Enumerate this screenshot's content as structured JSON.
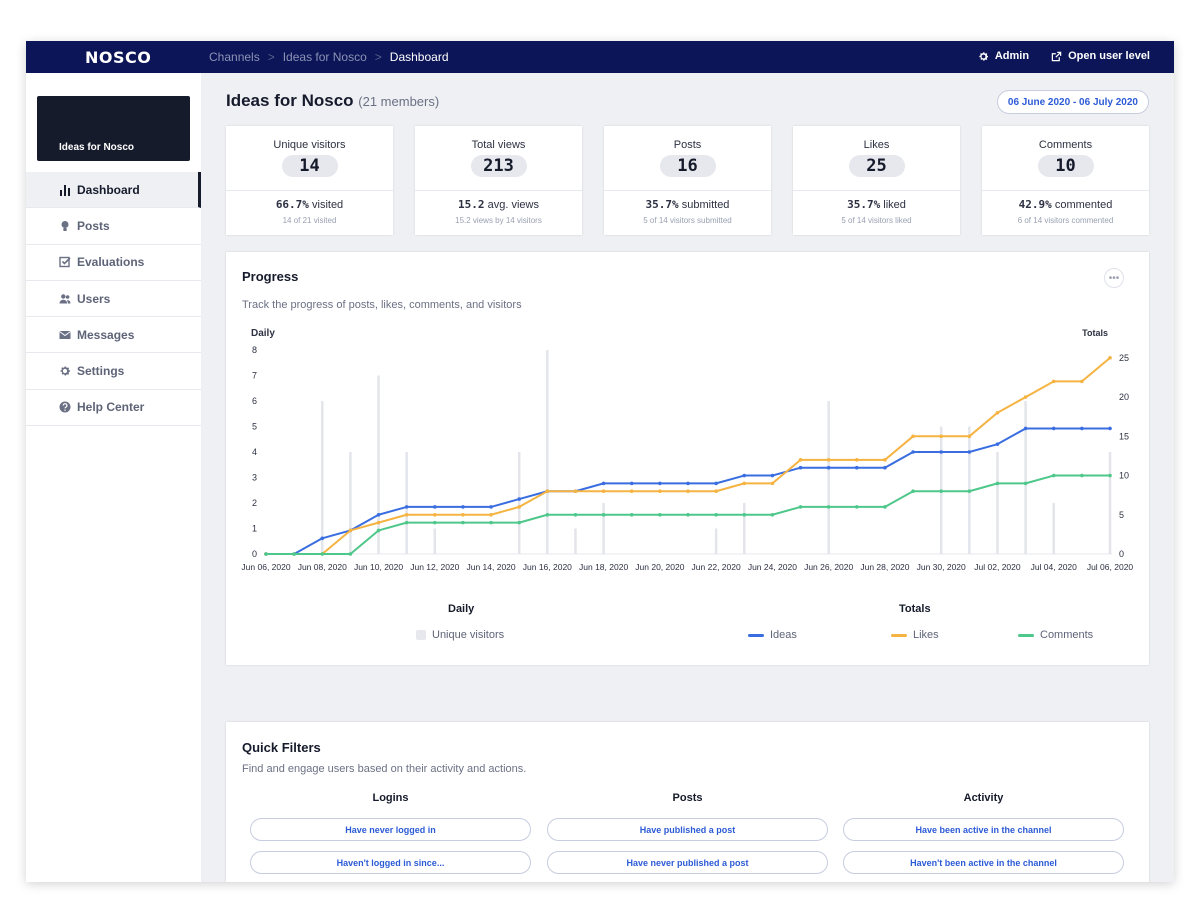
{
  "topbar": {
    "logo": "NOSCO",
    "breadcrumbs": [
      "Channels",
      "Ideas for Nosco",
      "Dashboard"
    ],
    "admin_label": "Admin",
    "open_user_label": "Open user level"
  },
  "sidebar": {
    "channel_name": "Ideas for Nosco",
    "items": [
      {
        "label": "Dashboard",
        "icon": "bar-chart-icon"
      },
      {
        "label": "Posts",
        "icon": "lightbulb-icon"
      },
      {
        "label": "Evaluations",
        "icon": "checkbox-icon"
      },
      {
        "label": "Users",
        "icon": "users-icon"
      },
      {
        "label": "Messages",
        "icon": "envelope-icon"
      },
      {
        "label": "Settings",
        "icon": "gear-icon"
      },
      {
        "label": "Help Center",
        "icon": "question-icon"
      }
    ]
  },
  "header": {
    "title": "Ideas for Nosco",
    "members": "(21 members)",
    "date_range": "06 June 2020 - 06 July 2020"
  },
  "stats": [
    {
      "label": "Unique visitors",
      "value": "14",
      "pct": "66.7%",
      "pct_text": "visited",
      "sub": "14 of 21 visited"
    },
    {
      "label": "Total views",
      "value": "213",
      "pct": "15.2",
      "pct_text": "avg. views",
      "sub": "15.2 views by 14 visitors"
    },
    {
      "label": "Posts",
      "value": "16",
      "pct": "35.7%",
      "pct_text": "submitted",
      "sub": "5 of 14 visitors submitted"
    },
    {
      "label": "Likes",
      "value": "25",
      "pct": "35.7%",
      "pct_text": "liked",
      "sub": "5 of 14 visitors liked"
    },
    {
      "label": "Comments",
      "value": "10",
      "pct": "42.9%",
      "pct_text": "commented",
      "sub": "6 of 14 visitors commented"
    }
  ],
  "progress": {
    "title": "Progress",
    "description": "Track the progress of posts, likes, comments, and visitors",
    "legend": {
      "daily_heading": "Daily",
      "totals_heading": "Totals",
      "unique_visitors": "Unique visitors",
      "ideas": "Ideas",
      "likes": "Likes",
      "comments": "Comments"
    }
  },
  "chart_data": {
    "type": "bar",
    "left_axis_label": "Daily",
    "right_axis_label": "Totals",
    "left_ylim": [
      0,
      8
    ],
    "right_ylim": [
      0,
      26
    ],
    "left_ticks": [
      0,
      1,
      2,
      3,
      4,
      5,
      6,
      7,
      8
    ],
    "right_ticks": [
      0,
      5,
      10,
      15,
      20,
      25
    ],
    "x_tick_labels": [
      "Jun 06, 2020",
      "Jun 08, 2020",
      "Jun 10, 2020",
      "Jun 12, 2020",
      "Jun 14, 2020",
      "Jun 16, 2020",
      "Jun 18, 2020",
      "Jun 20, 2020",
      "Jun 22, 2020",
      "Jun 24, 2020",
      "Jun 26, 2020",
      "Jun 28, 2020",
      "Jun 30, 2020",
      "Jul 02, 2020",
      "Jul 04, 2020",
      "Jul 06, 2020"
    ],
    "dates": [
      "2020-06-06",
      "2020-06-07",
      "2020-06-08",
      "2020-06-09",
      "2020-06-10",
      "2020-06-11",
      "2020-06-12",
      "2020-06-13",
      "2020-06-14",
      "2020-06-15",
      "2020-06-16",
      "2020-06-17",
      "2020-06-18",
      "2020-06-19",
      "2020-06-20",
      "2020-06-21",
      "2020-06-22",
      "2020-06-23",
      "2020-06-24",
      "2020-06-25",
      "2020-06-26",
      "2020-06-27",
      "2020-06-28",
      "2020-06-29",
      "2020-06-30",
      "2020-07-01",
      "2020-07-02",
      "2020-07-03",
      "2020-07-04",
      "2020-07-05",
      "2020-07-06"
    ],
    "bars": {
      "name": "Unique visitors",
      "axis": "left",
      "color": "#e3e5ea",
      "values": [
        0,
        0,
        6,
        4,
        7,
        4,
        1,
        0,
        0,
        4,
        8,
        1,
        2,
        0,
        0,
        0,
        1,
        2,
        0,
        0,
        6,
        0,
        0,
        0,
        5,
        5,
        4,
        6,
        2,
        0,
        4
      ]
    },
    "series": [
      {
        "name": "Ideas",
        "axis": "right",
        "color": "#3a6ee0",
        "values": [
          0,
          0,
          2,
          3,
          5,
          6,
          6,
          6,
          6,
          7,
          8,
          8,
          9,
          9,
          9,
          9,
          9,
          10,
          10,
          11,
          11,
          11,
          11,
          13,
          13,
          13,
          14,
          16,
          16,
          16,
          16
        ]
      },
      {
        "name": "Likes",
        "axis": "right",
        "color": "#f5b342",
        "values": [
          0,
          0,
          0,
          3,
          4,
          5,
          5,
          5,
          5,
          6,
          8,
          8,
          8,
          8,
          8,
          8,
          8,
          9,
          9,
          12,
          12,
          12,
          12,
          15,
          15,
          15,
          18,
          20,
          22,
          22,
          25
        ]
      },
      {
        "name": "Comments",
        "axis": "right",
        "color": "#4ec78a",
        "values": [
          0,
          0,
          0,
          0,
          3,
          4,
          4,
          4,
          4,
          4,
          5,
          5,
          5,
          5,
          5,
          5,
          5,
          5,
          5,
          6,
          6,
          6,
          6,
          8,
          8,
          8,
          9,
          9,
          10,
          10,
          10
        ]
      }
    ]
  },
  "quick_filters": {
    "title": "Quick Filters",
    "description": "Find and engage users based on their activity and actions.",
    "columns": [
      {
        "heading": "Logins",
        "buttons": [
          "Have never logged in",
          "Haven't logged in since..."
        ]
      },
      {
        "heading": "Posts",
        "buttons": [
          "Have published a post",
          "Have never published a post"
        ]
      },
      {
        "heading": "Activity",
        "buttons": [
          "Have been active in the channel",
          "Haven't been active in the channel"
        ]
      }
    ]
  }
}
